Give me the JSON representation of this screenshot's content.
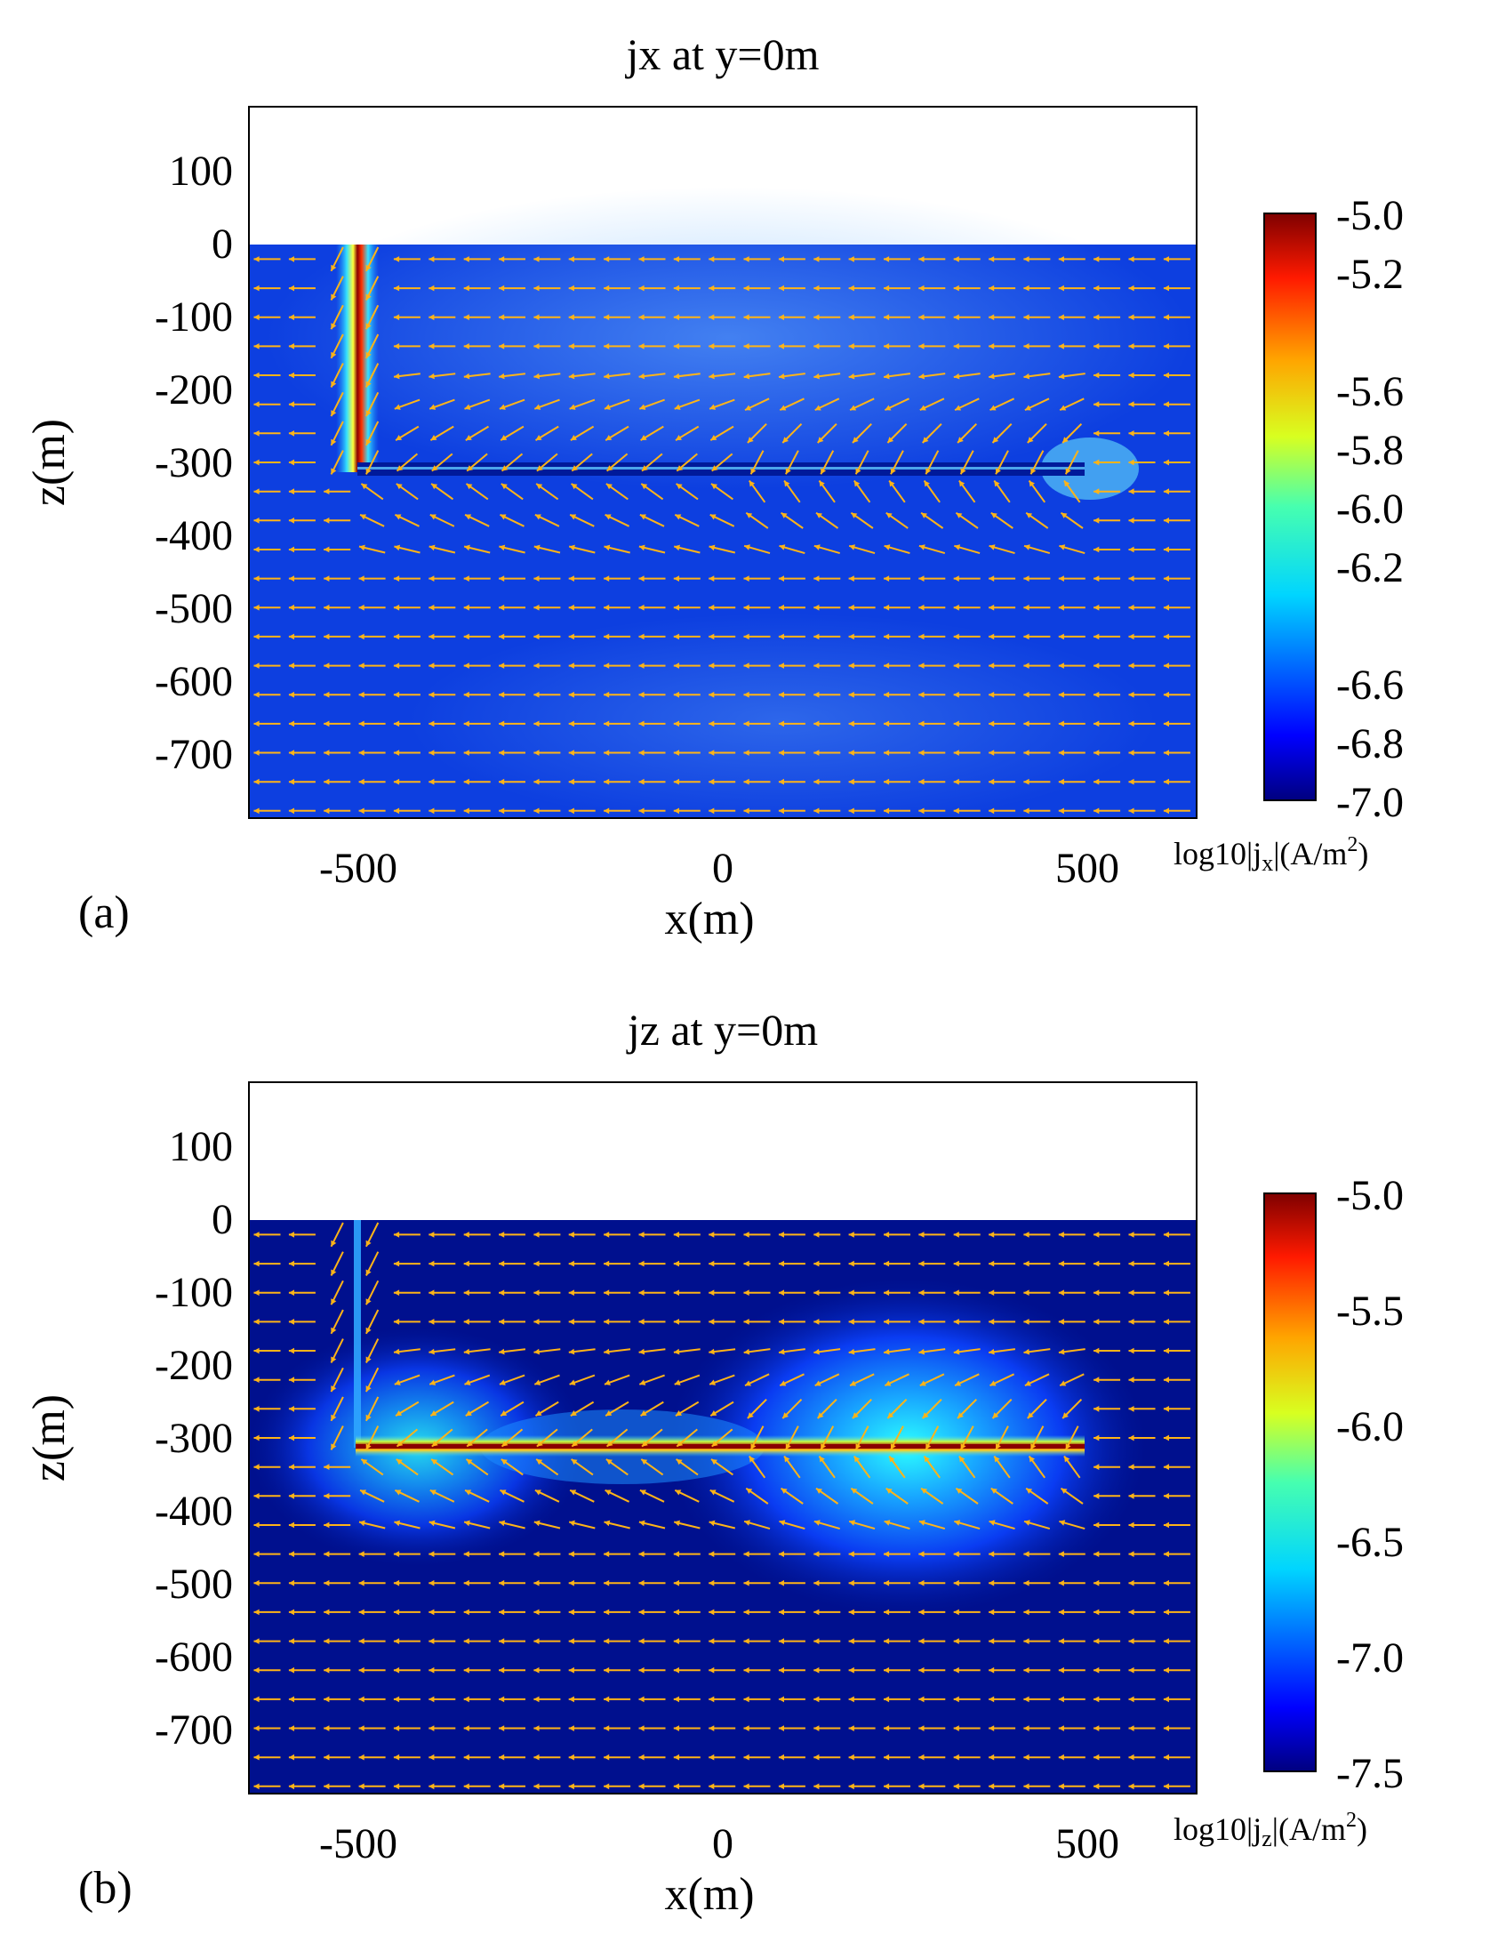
{
  "colors": {
    "arrow": "#ffb417",
    "field_low_a": "#0d3fe0",
    "field_low_b": "#00108e",
    "frame": "#000000",
    "background": "#ffffff"
  },
  "chart_data": [
    {
      "type": "heatmap",
      "panel_label": "(a)",
      "title": "jx at y=0m",
      "xlabel": "x(m)",
      "ylabel": "z(m)",
      "xlim": [
        -650,
        650
      ],
      "ylim": [
        -790,
        190
      ],
      "xticks": [
        -500,
        0,
        500
      ],
      "xtick_labels": [
        "-500",
        "0",
        "500"
      ],
      "yticks": [
        100,
        0,
        -100,
        -200,
        -300,
        -400,
        -500,
        -600,
        -700
      ],
      "ytick_labels": [
        "100",
        "0",
        "-100",
        "-200",
        "-300",
        "-400",
        "-500",
        "-600",
        "-700"
      ],
      "ground_level_z": 0,
      "features": {
        "vertical_well": {
          "x": -500,
          "z_top": 0,
          "z_bottom": -310
        },
        "horizontal_well": {
          "x_start": -500,
          "x_end": 500,
          "z": -310
        }
      },
      "background_value": -6.7,
      "colorbar": {
        "label": "log10|jx|(A/m2)",
        "label_main": "log10|j",
        "label_sub": "x",
        "label_rest": "|(A/m",
        "label_sup": "2",
        "label_end": ")",
        "range": [
          -7.0,
          -5.0
        ],
        "ticks": [
          -5.0,
          -5.2,
          -5.6,
          -5.8,
          -6.0,
          -6.2,
          -6.6,
          -6.8,
          -7.0
        ],
        "tick_labels": [
          "-5.0",
          "-5.2",
          "-5.6",
          "-5.8",
          "-6.0",
          "-6.2",
          "-6.6",
          "-6.8",
          "-7.0"
        ]
      },
      "arrows": "current density direction vectors, predominantly pointing in -x direction"
    },
    {
      "type": "heatmap",
      "panel_label": "(b)",
      "title": "jz at y=0m",
      "xlabel": "x(m)",
      "ylabel": "z(m)",
      "xlim": [
        -650,
        650
      ],
      "ylim": [
        -790,
        190
      ],
      "xticks": [
        -500,
        0,
        500
      ],
      "xtick_labels": [
        "-500",
        "0",
        "500"
      ],
      "yticks": [
        100,
        0,
        -100,
        -200,
        -300,
        -400,
        -500,
        -600,
        -700
      ],
      "ytick_labels": [
        "100",
        "0",
        "-100",
        "-200",
        "-300",
        "-400",
        "-500",
        "-600",
        "-700"
      ],
      "ground_level_z": 0,
      "features": {
        "vertical_well": {
          "x": -500,
          "z_top": 0,
          "z_bottom": -310
        },
        "horizontal_well": {
          "x_start": -500,
          "x_end": 500,
          "z": -310
        }
      },
      "background_value": -7.5,
      "colorbar": {
        "label": "log10|jz|(A/m2)",
        "label_main": "log10|j",
        "label_sub": "z",
        "label_rest": "|(A/m",
        "label_sup": "2",
        "label_end": ")",
        "range": [
          -7.5,
          -5.0
        ],
        "ticks": [
          -5.0,
          -5.5,
          -6.0,
          -6.5,
          -7.0,
          -7.5
        ],
        "tick_labels": [
          "-5.0",
          "-5.5",
          "-6.0",
          "-6.5",
          "-7.0",
          "-7.5"
        ]
      },
      "arrows": "current density direction vectors, predominantly pointing in -x direction"
    }
  ]
}
